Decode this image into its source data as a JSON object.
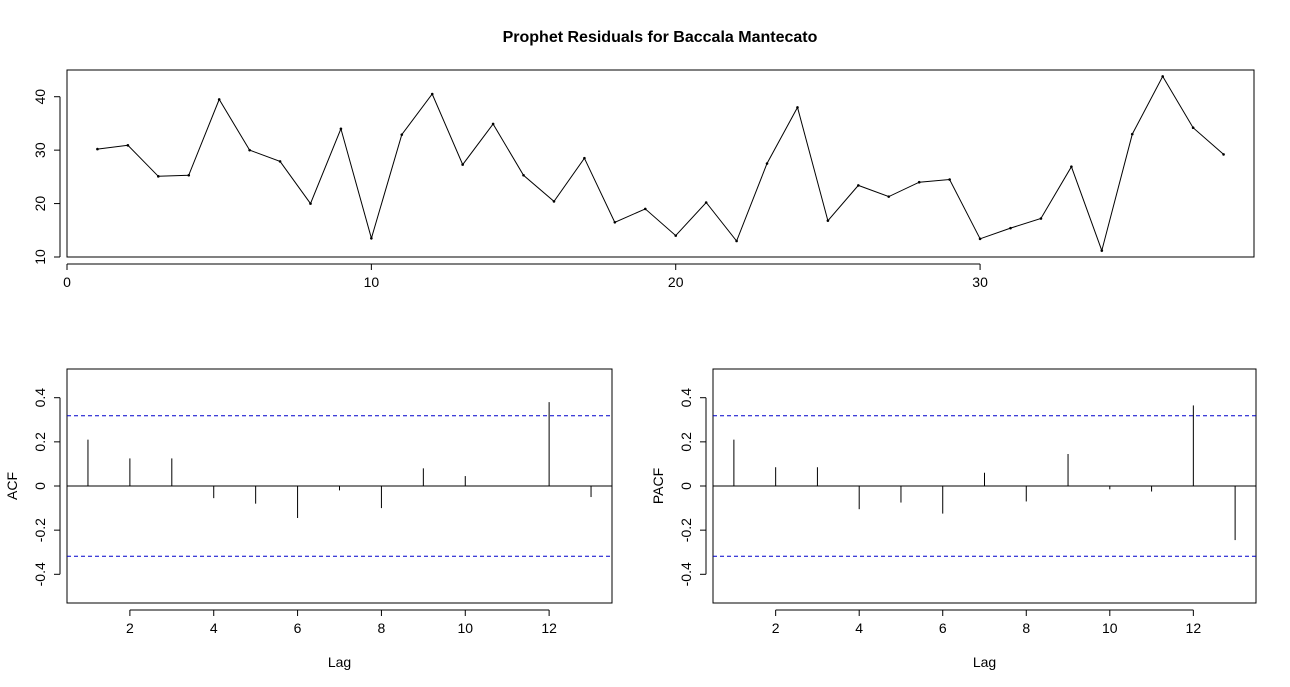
{
  "chart_data": [
    {
      "type": "line",
      "title": "Prophet Residuals for Baccala Mantecato",
      "xlabel": "",
      "ylabel": "",
      "xlim": [
        0,
        39
      ],
      "ylim": [
        10,
        45
      ],
      "xticks": [
        0,
        10,
        20,
        30
      ],
      "yticks": [
        10,
        20,
        30,
        40
      ],
      "grid": false,
      "series": [
        {
          "x": [
            1,
            2,
            3,
            4,
            5,
            6,
            7,
            8,
            9,
            10,
            11,
            12,
            13,
            14,
            15,
            16,
            17,
            18,
            19,
            20,
            21,
            22,
            23,
            24,
            25,
            26,
            27,
            28,
            29,
            30,
            31,
            32,
            33,
            34,
            35,
            36,
            37,
            38
          ],
          "values": [
            30.2,
            30.9,
            25.1,
            25.3,
            39.5,
            30.0,
            27.9,
            20.0,
            34.0,
            13.5,
            32.9,
            40.5,
            27.3,
            34.9,
            25.3,
            20.4,
            28.5,
            16.5,
            19.0,
            14.0,
            20.2,
            13.0,
            27.5,
            38.0,
            16.8,
            23.4,
            21.3,
            24.0,
            24.5,
            13.4,
            15.4,
            17.2,
            26.9,
            11.2,
            33.0,
            43.8,
            34.2,
            29.2
          ]
        }
      ]
    },
    {
      "type": "bar",
      "title": "",
      "xlabel": "Lag",
      "ylabel": "ACF",
      "xlim": [
        0.5,
        13.5
      ],
      "ylim": [
        -0.53,
        0.53
      ],
      "xticks": [
        2,
        4,
        6,
        8,
        10,
        12
      ],
      "yticks": [
        -0.4,
        -0.2,
        0.0,
        0.2,
        0.4
      ],
      "conf_limit": 0.318,
      "x": [
        1,
        2,
        3,
        4,
        5,
        6,
        7,
        8,
        9,
        10,
        11,
        12,
        13
      ],
      "values": [
        0.21,
        0.125,
        0.125,
        -0.055,
        -0.08,
        -0.145,
        -0.02,
        -0.1,
        0.08,
        0.045,
        0.0,
        0.38,
        -0.05
      ]
    },
    {
      "type": "bar",
      "title": "",
      "xlabel": "Lag",
      "ylabel": "PACF",
      "xlim": [
        0.5,
        13.5
      ],
      "ylim": [
        -0.53,
        0.53
      ],
      "xticks": [
        2,
        4,
        6,
        8,
        10,
        12
      ],
      "yticks": [
        -0.4,
        -0.2,
        0.0,
        0.2,
        0.4
      ],
      "conf_limit": 0.318,
      "x": [
        1,
        2,
        3,
        4,
        5,
        6,
        7,
        8,
        9,
        10,
        11,
        12,
        13
      ],
      "values": [
        0.21,
        0.085,
        0.085,
        -0.105,
        -0.075,
        -0.125,
        0.06,
        -0.07,
        0.145,
        -0.015,
        -0.025,
        0.365,
        -0.245
      ]
    }
  ],
  "colors": {
    "line": "#000000",
    "conf_band": "#0000cc",
    "axis": "#000000"
  }
}
